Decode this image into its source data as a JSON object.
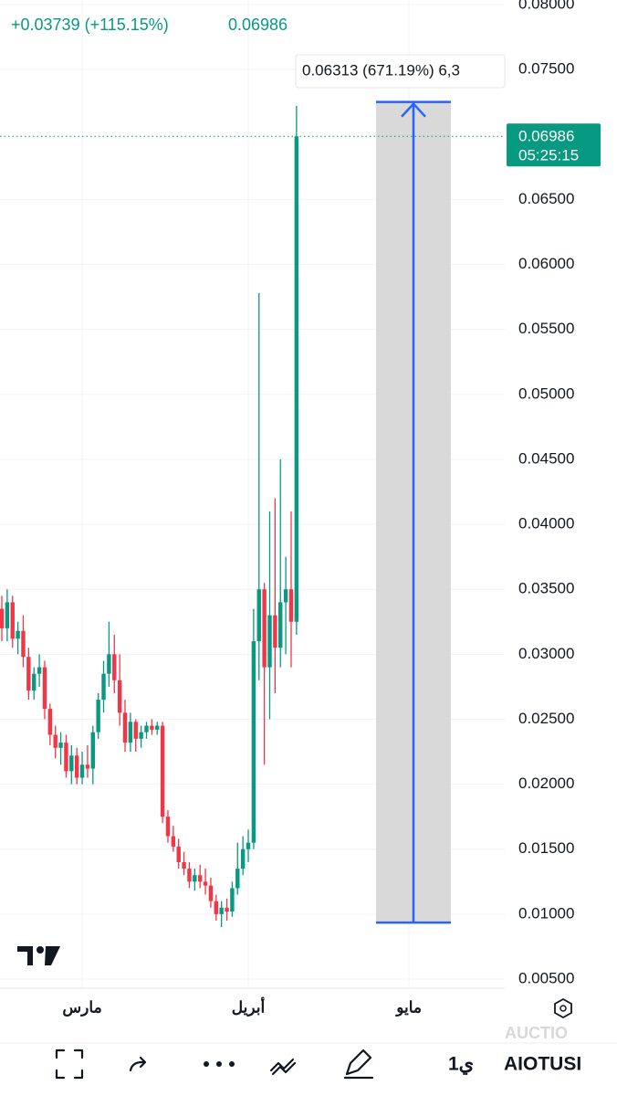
{
  "chart_data": {
    "type": "candlestick",
    "header_change": "+0.03739 (+115.15%)",
    "header_price": "0.06986",
    "categories": [
      null,
      null,
      null,
      null,
      null,
      null,
      null,
      null,
      null,
      null,
      null,
      null,
      null,
      null,
      null,
      "مارس",
      null,
      null,
      null,
      null,
      null,
      null,
      null,
      null,
      null,
      null,
      null,
      null,
      null,
      null,
      null,
      null,
      null,
      null,
      null,
      null,
      null,
      null,
      null,
      null,
      null,
      null,
      null,
      null,
      null,
      null,
      "أبريل",
      null,
      null,
      null,
      null,
      null,
      null,
      null,
      null,
      null,
      null,
      null,
      null,
      null,
      null,
      null,
      null,
      null,
      null,
      null,
      null,
      null,
      null,
      null,
      null,
      null,
      null,
      null,
      null,
      null,
      "مايو"
    ],
    "open": [
      0.0335,
      0.032,
      0.034,
      0.0312,
      0.0318,
      0.0298,
      0.0272,
      0.0285,
      0.029,
      0.0258,
      0.0238,
      0.0228,
      0.0232,
      0.021,
      0.0222,
      0.0205,
      0.0215,
      0.0212,
      0.024,
      0.0265,
      0.0285,
      0.03,
      0.028,
      0.0255,
      0.0232,
      0.0248,
      0.0235,
      0.024,
      0.0245,
      0.0242,
      0.0245,
      0.0175,
      0.016,
      0.0152,
      0.014,
      0.0135,
      0.0125,
      0.013,
      0.0125,
      0.0122,
      0.011,
      0.01,
      0.0105,
      0.0102,
      0.012,
      0.0135,
      0.015,
      0.0155,
      0.031,
      0.035,
      0.029,
      0.033,
      0.0305,
      0.034,
      0.035,
      0.0325,
      null,
      null,
      null,
      null,
      null,
      null,
      null,
      null,
      null,
      null,
      null,
      null,
      null,
      null,
      null,
      null,
      null,
      null,
      null,
      null,
      null
    ],
    "high": [
      0.0345,
      0.035,
      0.0345,
      0.0325,
      0.033,
      0.0305,
      0.029,
      0.03,
      0.0295,
      0.0262,
      0.0245,
      0.024,
      0.0238,
      0.023,
      0.0228,
      0.0225,
      0.023,
      0.0245,
      0.027,
      0.0295,
      0.0325,
      0.0315,
      0.03,
      0.0265,
      0.0255,
      0.025,
      0.0245,
      0.0248,
      0.025,
      0.0248,
      0.0248,
      0.018,
      0.0168,
      0.0158,
      0.0148,
      0.014,
      0.0135,
      0.0138,
      0.0135,
      0.0128,
      0.0115,
      0.011,
      0.0112,
      0.0125,
      0.0155,
      0.016,
      0.0165,
      0.0335,
      0.0578,
      0.0355,
      0.041,
      0.042,
      0.045,
      0.0375,
      0.041,
      0.0722,
      null,
      null,
      null,
      null,
      null,
      null,
      null,
      null,
      null,
      null,
      null,
      null,
      null,
      null,
      null,
      null,
      null,
      null,
      null,
      null,
      null
    ],
    "low": [
      0.031,
      0.031,
      0.0305,
      0.03,
      0.029,
      0.0265,
      0.0265,
      0.0275,
      0.025,
      0.023,
      0.022,
      0.0215,
      0.0205,
      0.02,
      0.02,
      0.02,
      0.0205,
      0.02,
      0.0235,
      0.0255,
      0.0275,
      0.027,
      0.0245,
      0.0225,
      0.0225,
      0.0225,
      0.0228,
      0.0235,
      0.0238,
      0.0238,
      0.017,
      0.0155,
      0.0148,
      0.0135,
      0.013,
      0.012,
      0.0118,
      0.012,
      0.0115,
      0.0105,
      0.0095,
      0.009,
      0.0095,
      0.0098,
      0.0115,
      0.013,
      0.014,
      0.015,
      0.028,
      0.0215,
      0.025,
      0.027,
      0.029,
      0.03,
      0.029,
      0.0315,
      null,
      null,
      null,
      null,
      null,
      null,
      null,
      null,
      null,
      null,
      null,
      null,
      null,
      null,
      null,
      null,
      null,
      null,
      null,
      null,
      null
    ],
    "close": [
      0.032,
      0.034,
      0.0312,
      0.0318,
      0.0298,
      0.0272,
      0.0285,
      0.029,
      0.0258,
      0.0238,
      0.0228,
      0.0232,
      0.021,
      0.0222,
      0.0205,
      0.0215,
      0.0212,
      0.024,
      0.0265,
      0.0285,
      0.03,
      0.028,
      0.0255,
      0.0232,
      0.0248,
      0.0235,
      0.024,
      0.0245,
      0.0242,
      0.0245,
      0.0175,
      0.016,
      0.0152,
      0.014,
      0.0135,
      0.0125,
      0.013,
      0.0125,
      0.0122,
      0.011,
      0.01,
      0.0105,
      0.0102,
      0.012,
      0.0135,
      0.015,
      0.0155,
      0.031,
      0.035,
      0.029,
      0.033,
      0.0305,
      0.034,
      0.035,
      0.0325,
      0.06986,
      null,
      null,
      null,
      null,
      null,
      null,
      null,
      null,
      null,
      null,
      null,
      null,
      null,
      null,
      null,
      null,
      null,
      null,
      null,
      null,
      null
    ],
    "up_color": "#089981",
    "down_color": "#f23645",
    "ylim": [
      0.00465,
      0.08035
    ],
    "yticks": [
      {
        "value": 0.005,
        "label": "0.00500"
      },
      {
        "value": 0.01,
        "label": "0.01000"
      },
      {
        "value": 0.015,
        "label": "0.01500"
      },
      {
        "value": 0.02,
        "label": "0.02000"
      },
      {
        "value": 0.025,
        "label": "0.02500"
      },
      {
        "value": 0.03,
        "label": "0.03000"
      },
      {
        "value": 0.035,
        "label": "0.03500"
      },
      {
        "value": 0.04,
        "label": "0.04000"
      },
      {
        "value": 0.045,
        "label": "0.04500"
      },
      {
        "value": 0.05,
        "label": "0.05000"
      },
      {
        "value": 0.055,
        "label": "0.05500"
      },
      {
        "value": 0.06,
        "label": "0.06000"
      },
      {
        "value": 0.065,
        "label": "0.06500"
      },
      {
        "value": 0.075,
        "label": "0.07500"
      },
      {
        "value": 0.08,
        "label": "0.08000"
      }
    ],
    "grid": true,
    "last_price": {
      "value": 0.06986,
      "label": "0.06986"
    },
    "countdown": "05:25:15",
    "measure": {
      "top": 0.0725,
      "bottom": 0.00935,
      "label": "0.06313 (671.19%) 6,3"
    }
  },
  "toolbar": {
    "symbol": "AIOTUSI",
    "interval": "1ي",
    "faded": "AUCTIO"
  }
}
